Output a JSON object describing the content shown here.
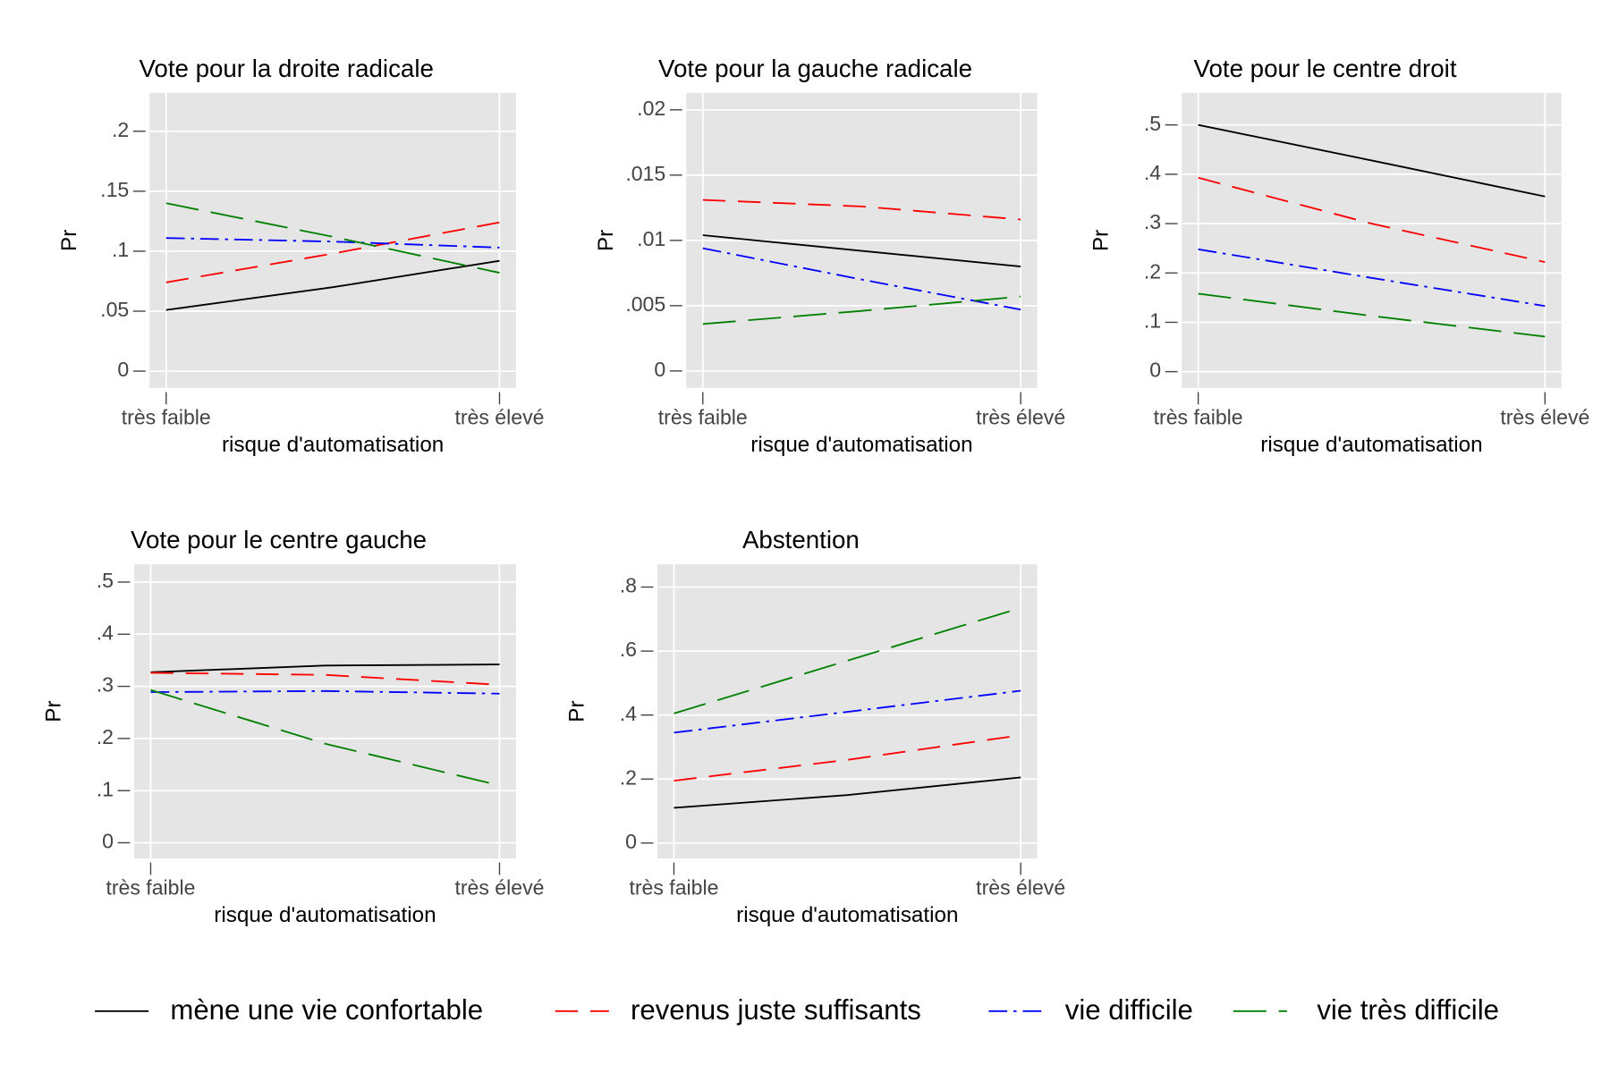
{
  "chart_data": [
    {
      "type": "line",
      "title": "Vote pour la droite radicale",
      "ylabel": "Pr",
      "xlabel": "risque d'automatisation",
      "categories": [
        "très faible",
        null,
        "très élevé"
      ],
      "ylim": [
        -0.014,
        0.232
      ],
      "yticks": [
        0,
        {
          "value": 0.05,
          "label": ".05"
        },
        {
          "value": 0.1,
          "label": ".1"
        },
        {
          "value": 0.15,
          "label": ".15"
        },
        {
          "value": 0.2,
          "label": ".2"
        }
      ],
      "grid": true,
      "series": [
        {
          "name": "mène une vie confortable",
          "color": "#000000",
          "values": [
            0.051,
            0.07,
            0.092
          ]
        },
        {
          "name": "revenus juste suffisants",
          "color": "#ff0000",
          "values": [
            0.074,
            0.098,
            0.124
          ]
        },
        {
          "name": "vie difficile",
          "color": "#0000ff",
          "values": [
            0.111,
            0.108,
            0.103
          ]
        },
        {
          "name": "vie très difficile",
          "color": "#008000",
          "values": [
            0.14,
            0.112,
            0.082
          ]
        }
      ]
    },
    {
      "type": "line",
      "title": "Vote pour la gauche radicale",
      "ylabel": "Pr",
      "xlabel": "risque d'automatisation",
      "categories": [
        "très faible",
        null,
        "très élevé"
      ],
      "ylim": [
        -0.0013,
        0.0213
      ],
      "yticks": [
        0,
        {
          "value": 0.005,
          "label": ".005"
        },
        {
          "value": 0.01,
          "label": ".01"
        },
        {
          "value": 0.015,
          "label": ".015"
        },
        {
          "value": 0.02,
          "label": ".02"
        }
      ],
      "grid": true,
      "series": [
        {
          "name": "mène une vie confortable",
          "color": "#000000",
          "values": [
            0.0104,
            0.0092,
            0.008
          ]
        },
        {
          "name": "revenus juste suffisants",
          "color": "#ff0000",
          "values": [
            0.0131,
            0.0126,
            0.0116
          ]
        },
        {
          "name": "vie difficile",
          "color": "#0000ff",
          "values": [
            0.0094,
            0.007,
            0.0047
          ]
        },
        {
          "name": "vie très difficile",
          "color": "#008000",
          "values": [
            0.0036,
            0.0046,
            0.0057
          ]
        }
      ]
    },
    {
      "type": "line",
      "title": "Vote pour le centre droit",
      "ylabel": "Pr",
      "xlabel": "risque d'automatisation",
      "categories": [
        "très faible",
        null,
        "très élevé"
      ],
      "ylim": [
        -0.033,
        0.565
      ],
      "yticks": [
        0,
        {
          "value": 0.1,
          "label": ".1"
        },
        {
          "value": 0.2,
          "label": ".2"
        },
        {
          "value": 0.3,
          "label": ".3"
        },
        {
          "value": 0.4,
          "label": ".4"
        },
        {
          "value": 0.5,
          "label": ".5"
        }
      ],
      "grid": true,
      "series": [
        {
          "name": "mène une vie confortable",
          "color": "#000000",
          "values": [
            0.5,
            0.428,
            0.355
          ]
        },
        {
          "name": "revenus juste suffisants",
          "color": "#ff0000",
          "values": [
            0.393,
            0.3,
            0.222
          ]
        },
        {
          "name": "vie difficile",
          "color": "#0000ff",
          "values": [
            0.248,
            0.19,
            0.133
          ]
        },
        {
          "name": "vie très difficile",
          "color": "#008000",
          "values": [
            0.158,
            0.113,
            0.071
          ]
        }
      ]
    },
    {
      "type": "line",
      "title": "Vote pour le centre gauche",
      "ylabel": "Pr",
      "xlabel": "risque d'automatisation",
      "categories": [
        "très faible",
        null,
        "très élevé"
      ],
      "ylim": [
        -0.03,
        0.534
      ],
      "yticks": [
        0,
        {
          "value": 0.1,
          "label": ".1"
        },
        {
          "value": 0.2,
          "label": ".2"
        },
        {
          "value": 0.3,
          "label": ".3"
        },
        {
          "value": 0.4,
          "label": ".4"
        },
        {
          "value": 0.5,
          "label": ".5"
        }
      ],
      "grid": true,
      "series": [
        {
          "name": "mène une vie confortable",
          "color": "#000000",
          "values": [
            0.327,
            0.34,
            0.342
          ]
        },
        {
          "name": "revenus juste suffisants",
          "color": "#ff0000",
          "values": [
            0.326,
            0.322,
            0.303
          ]
        },
        {
          "name": "vie difficile",
          "color": "#0000ff",
          "values": [
            0.289,
            0.291,
            0.286
          ]
        },
        {
          "name": "vie très difficile",
          "color": "#008000",
          "values": [
            0.293,
            0.19,
            0.11
          ]
        }
      ]
    },
    {
      "type": "line",
      "title": "Abstention",
      "ylabel": "Pr",
      "xlabel": "risque d'automatisation",
      "categories": [
        "très faible",
        null,
        "très élevé"
      ],
      "ylim": [
        -0.048,
        0.871
      ],
      "yticks": [
        0,
        {
          "value": 0.2,
          "label": ".2"
        },
        {
          "value": 0.4,
          "label": ".4"
        },
        {
          "value": 0.6,
          "label": ".6"
        },
        {
          "value": 0.8,
          "label": ".8"
        }
      ],
      "grid": true,
      "series": [
        {
          "name": "mène une vie confortable",
          "color": "#000000",
          "values": [
            0.11,
            0.15,
            0.205
          ]
        },
        {
          "name": "revenus juste suffisants",
          "color": "#ff0000",
          "values": [
            0.195,
            0.26,
            0.337
          ]
        },
        {
          "name": "vie difficile",
          "color": "#0000ff",
          "values": [
            0.345,
            0.41,
            0.476
          ]
        },
        {
          "name": "vie très difficile",
          "color": "#008000",
          "values": [
            0.405,
            0.57,
            0.735
          ]
        }
      ]
    }
  ]
}
